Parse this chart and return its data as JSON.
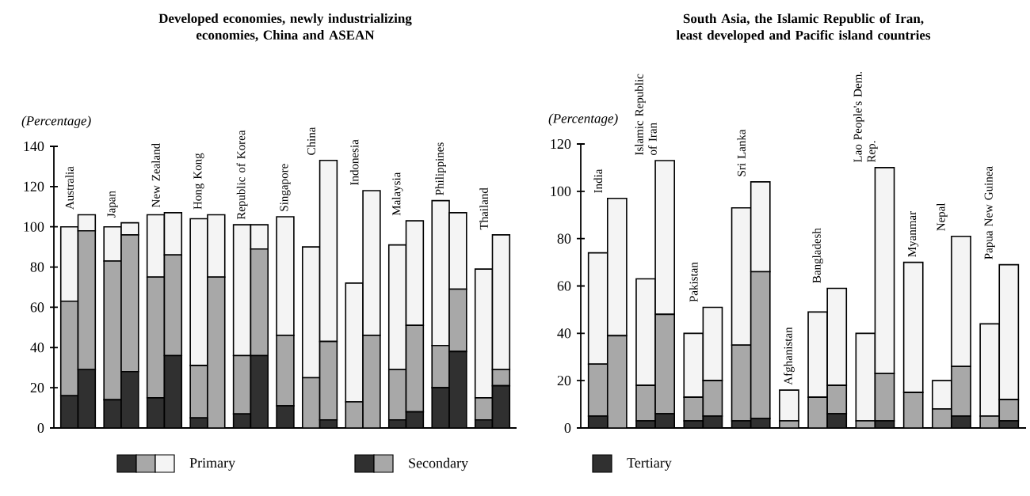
{
  "chart_data": [
    {
      "type": "bar",
      "stacked": true,
      "title": "Developed economies, newly industrializing economies, China and ASEAN",
      "ylabel": "(Percentage)",
      "categories": [
        "Australia",
        null,
        "Japan",
        null,
        "New Zealand",
        null,
        "Hong Kong",
        null,
        "Republic of Korea",
        null,
        "Singapore",
        "China",
        null,
        "Indonesia",
        null,
        "Malaysia",
        null,
        "Philippines",
        null,
        "Thailand",
        null
      ],
      "series": [
        {
          "name": "Tertiary",
          "color": "#303030",
          "values": [
            16,
            29,
            14,
            28,
            15,
            36,
            5,
            0,
            7,
            36,
            11,
            0,
            4,
            0,
            0,
            4,
            8,
            20,
            38,
            4,
            21
          ]
        },
        {
          "name": "Secondary",
          "color": "#a8a8a8",
          "values": [
            47,
            69,
            69,
            68,
            60,
            50,
            26,
            75,
            29,
            53,
            35,
            25,
            39,
            13,
            46,
            25,
            43,
            21,
            31,
            11,
            8
          ]
        },
        {
          "name": "Primary",
          "color": "#f4f4f4",
          "values": [
            37,
            8,
            17,
            6,
            31,
            21,
            73,
            31,
            65,
            12,
            59,
            65,
            90,
            59,
            72,
            62,
            52,
            72,
            38,
            64,
            67
          ]
        }
      ],
      "ylim": [
        0,
        140
      ],
      "yticks": [
        0,
        20,
        40,
        60,
        80,
        100,
        120,
        140
      ],
      "legend": "bottom"
    },
    {
      "type": "bar",
      "stacked": true,
      "title": "South Asia, the Islamic Republic of Iran, least developed and Pacific island countries",
      "ylabel": "(Percentage)",
      "categories": [
        "India",
        null,
        "Islamic Republic of Iran",
        null,
        "Pakistan",
        null,
        "Sri Lanka",
        null,
        "Afghanistan",
        "Bangladesh",
        null,
        "Lao People's Dem. Rep.",
        null,
        "Myanmar",
        "Nepal",
        null,
        "Papua New Guinea",
        null
      ],
      "series": [
        {
          "color": "#303030",
          "values": [
            5,
            0,
            3,
            6,
            3,
            5,
            3,
            4,
            0,
            0,
            6,
            0,
            3,
            0,
            0,
            5,
            0,
            3
          ]
        },
        {
          "color": "#a8a8a8",
          "values": [
            22,
            39,
            15,
            42,
            10,
            15,
            32,
            62,
            3,
            13,
            12,
            3,
            20,
            15,
            8,
            21,
            5,
            9
          ]
        },
        {
          "color": "#f4f4f4",
          "values": [
            47,
            58,
            45,
            65,
            27,
            31,
            58,
            38,
            13,
            36,
            41,
            37,
            87,
            55,
            12,
            55,
            39,
            57
          ]
        }
      ],
      "ylim": [
        0,
        120
      ],
      "yticks": [
        0,
        20,
        40,
        60,
        80,
        100,
        120
      ]
    }
  ]
}
